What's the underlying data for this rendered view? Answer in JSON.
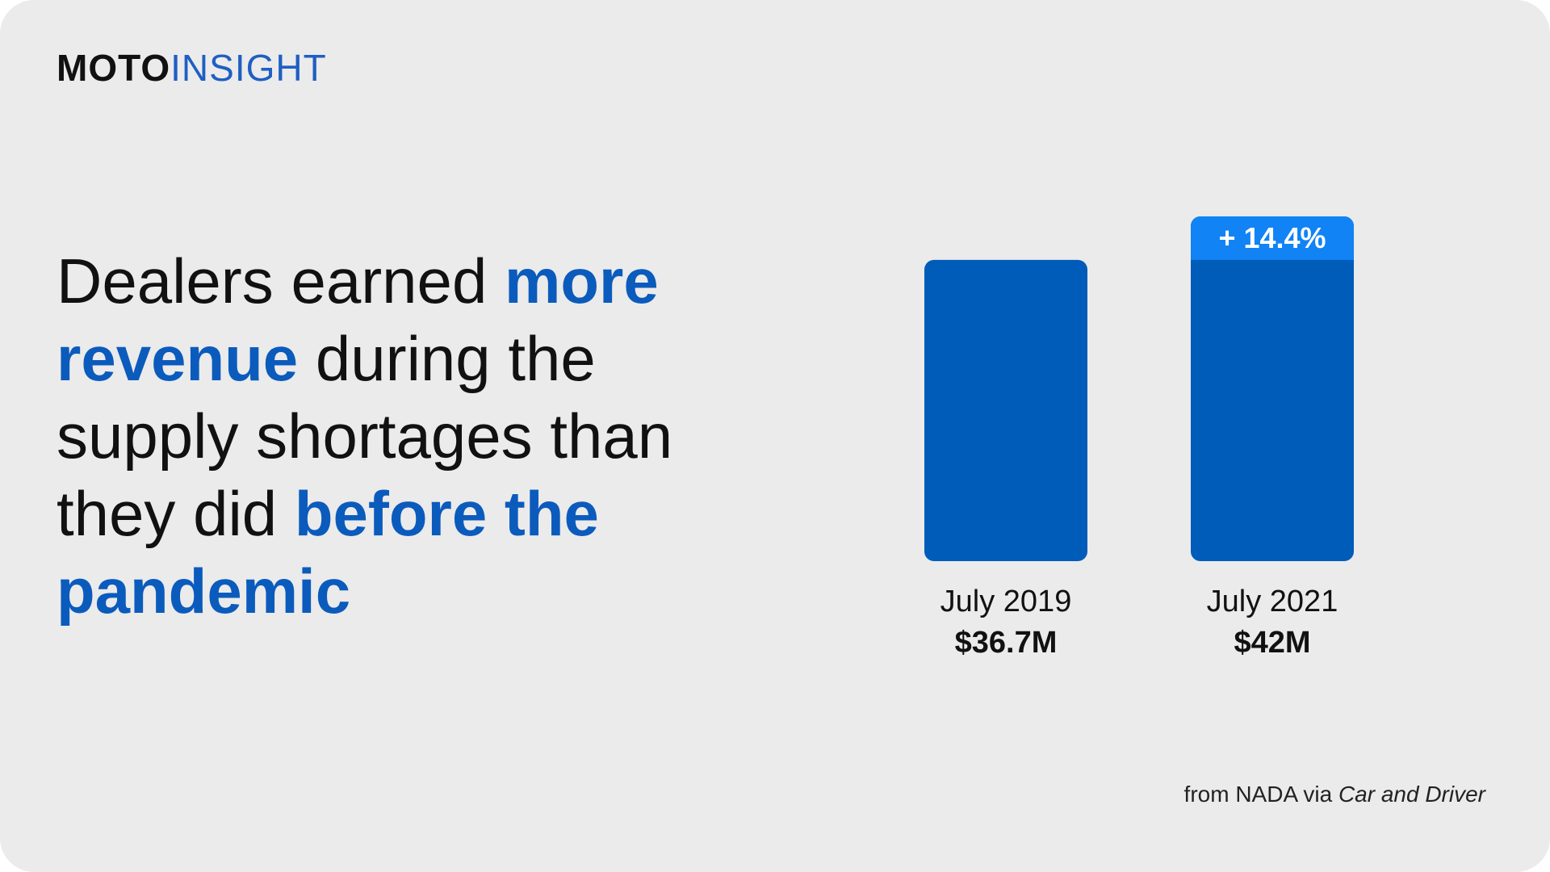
{
  "brand": {
    "logo_bold": "MOTO",
    "logo_light": "INSIGHT"
  },
  "headline": {
    "p1": "Dealers earned ",
    "h1": "more revenue",
    "p2": " during the supply shortages than they did ",
    "h2": "before the pandemic"
  },
  "chart_data": {
    "type": "bar",
    "categories": [
      "July 2019",
      "July 2021"
    ],
    "values": [
      36.7,
      42
    ],
    "value_labels": [
      "$36.7M",
      "$42M"
    ],
    "annotations": [
      {
        "category": "July 2021",
        "text": "+ 14.4%"
      }
    ],
    "ylim": [
      0,
      42
    ],
    "grid": false,
    "colors": {
      "bar": "#005cb9",
      "increase": "#1183f5"
    }
  },
  "source": {
    "prefix": "from NADA via ",
    "publication": "Car and Driver"
  },
  "colors": {
    "background": "#ebebeb",
    "accent": "#0b5bbd",
    "bar": "#005cb9",
    "highlight": "#1183f5"
  }
}
